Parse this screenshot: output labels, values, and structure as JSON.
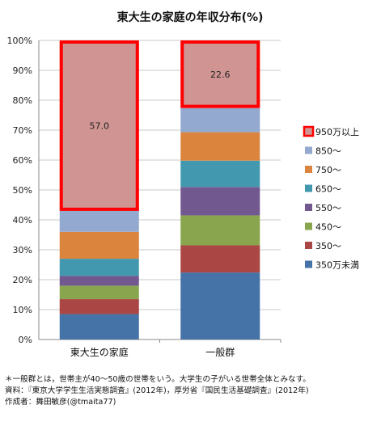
{
  "chart_data": {
    "type": "stacked_bar",
    "title": "東大生の家庭の年収分布(%)",
    "categories": [
      "東大生の家庭",
      "一般群"
    ],
    "ylim": [
      0,
      100
    ],
    "yticks": [
      "0%",
      "10%",
      "20%",
      "30%",
      "40%",
      "50%",
      "60%",
      "70%",
      "80%",
      "90%",
      "100%"
    ],
    "grid": true,
    "legend_position": "right",
    "series": [
      {
        "name": "350万未満",
        "color": "#4572A7",
        "values": [
          8.5,
          22.4
        ]
      },
      {
        "name": "350～",
        "color": "#AA4643",
        "values": [
          5.0,
          9.1
        ]
      },
      {
        "name": "450～",
        "color": "#89A54E",
        "values": [
          4.5,
          10.0
        ]
      },
      {
        "name": "550～",
        "color": "#71588F",
        "values": [
          3.3,
          9.5
        ]
      },
      {
        "name": "650～",
        "color": "#4198AF",
        "values": [
          5.7,
          8.8
        ]
      },
      {
        "name": "750～",
        "color": "#DB843D",
        "values": [
          9.0,
          9.5
        ]
      },
      {
        "name": "850～",
        "color": "#93A9CF",
        "values": [
          7.0,
          8.1
        ]
      },
      {
        "name": "950万以上",
        "color": "#D09593",
        "values": [
          57.0,
          22.6
        ],
        "highlight": true,
        "highlight_color": "#FF0000"
      }
    ],
    "data_labels": [
      {
        "series": "950万以上",
        "category": "東大生の家庭",
        "text": "57.0"
      },
      {
        "series": "950万以上",
        "category": "一般群",
        "text": "22.6"
      }
    ]
  },
  "notes": {
    "line1": "＊一般群とは，世帯主が40～50歳の世帯をいう。大学生の子がいる世帯全体とみなす。",
    "line2": "資料：『東京大学学生生活実態調査』(2012年)，厚労省『国民生活基礎調査』(2012年)",
    "line3": "作成者：舞田敏彦(@tmaita77)"
  }
}
